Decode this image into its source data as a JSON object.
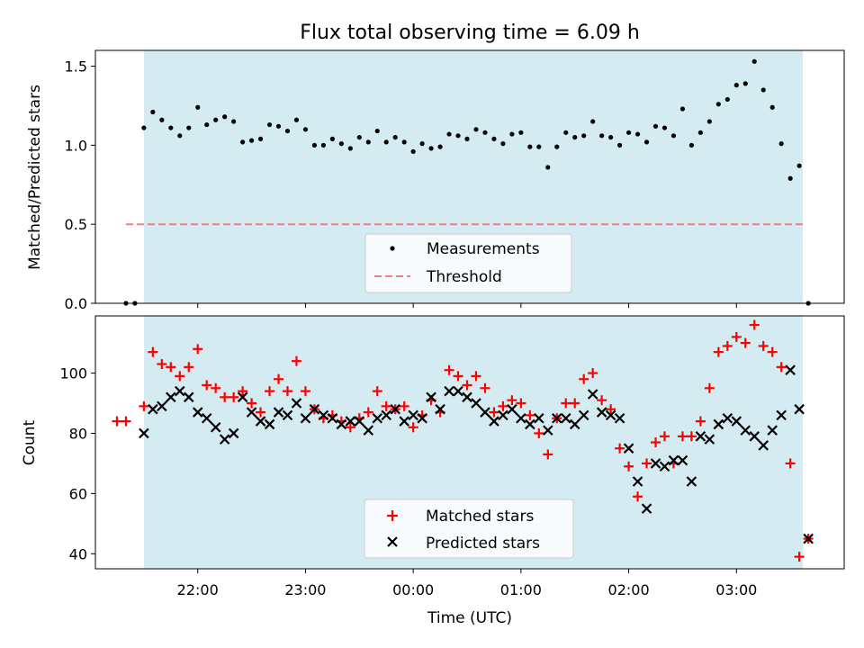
{
  "title": "Flux total observing time = 6.09 h",
  "colors": {
    "shade": "#add8e6",
    "measurement": "#000000",
    "threshold": "#f08080",
    "matched": "#ff0000",
    "predicted": "#000000"
  },
  "chart_data": [
    {
      "type": "scatter",
      "panel": "top",
      "ylabel": "Matched/Predicted stars",
      "xlabel": "",
      "ylim": [
        0,
        1.6
      ],
      "yticks": [
        0.0,
        0.5,
        1.0,
        1.5
      ],
      "ytick_labels": [
        "0.0",
        "0.5",
        "1.0",
        "1.5"
      ],
      "shaded_interval": [
        "21:30",
        "03:37"
      ],
      "threshold": 0.5,
      "legend": {
        "position": "bottom-center",
        "entries": [
          "Measurements",
          "Threshold"
        ]
      },
      "series": [
        {
          "name": "Measurements",
          "marker": "dot",
          "x": [
            "21:20",
            "21:25",
            "21:30",
            "21:35",
            "21:40",
            "21:45",
            "21:50",
            "21:55",
            "22:00",
            "22:05",
            "22:10",
            "22:15",
            "22:20",
            "22:25",
            "22:30",
            "22:35",
            "22:40",
            "22:45",
            "22:50",
            "22:55",
            "23:00",
            "23:05",
            "23:10",
            "23:15",
            "23:20",
            "23:25",
            "23:30",
            "23:35",
            "23:40",
            "23:45",
            "23:50",
            "23:55",
            "00:00",
            "00:05",
            "00:10",
            "00:15",
            "00:20",
            "00:25",
            "00:30",
            "00:35",
            "00:40",
            "00:45",
            "00:50",
            "00:55",
            "01:00",
            "01:05",
            "01:10",
            "01:15",
            "01:20",
            "01:25",
            "01:30",
            "01:35",
            "01:40",
            "01:45",
            "01:50",
            "01:55",
            "02:00",
            "02:05",
            "02:10",
            "02:15",
            "02:20",
            "02:25",
            "02:30",
            "02:35",
            "02:40",
            "02:45",
            "02:50",
            "02:55",
            "03:00",
            "03:05",
            "03:10",
            "03:15",
            "03:20",
            "03:25",
            "03:30",
            "03:35",
            "03:40"
          ],
          "y": [
            0.0,
            0.0,
            1.11,
            1.21,
            1.16,
            1.11,
            1.06,
            1.11,
            1.24,
            1.13,
            1.16,
            1.18,
            1.15,
            1.02,
            1.03,
            1.04,
            1.13,
            1.12,
            1.09,
            1.16,
            1.1,
            1.0,
            1.0,
            1.04,
            1.01,
            0.98,
            1.05,
            1.02,
            1.09,
            1.02,
            1.05,
            1.02,
            0.96,
            1.01,
            0.98,
            0.99,
            1.07,
            1.06,
            1.04,
            1.1,
            1.08,
            1.04,
            1.01,
            1.07,
            1.08,
            0.99,
            0.99,
            0.86,
            0.99,
            1.08,
            1.05,
            1.06,
            1.15,
            1.06,
            1.05,
            1.0,
            1.08,
            1.07,
            1.02,
            1.12,
            1.11,
            1.06,
            1.23,
            1.0,
            1.08,
            1.15,
            1.26,
            1.29,
            1.38,
            1.39,
            1.53,
            1.35,
            1.24,
            1.01,
            0.79,
            0.87,
            0.0
          ]
        },
        {
          "name": "Threshold",
          "style": "dashed",
          "x": [
            "21:20",
            "03:37"
          ],
          "y": [
            0.5,
            0.5
          ]
        }
      ]
    },
    {
      "type": "scatter",
      "panel": "bottom",
      "ylabel": "Count",
      "xlabel": "Time (UTC)",
      "ylim": [
        35,
        119
      ],
      "yticks": [
        40,
        60,
        80,
        100
      ],
      "ytick_labels": [
        "40",
        "60",
        "80",
        "100"
      ],
      "xlim": [
        "21:03",
        "04:00"
      ],
      "xticks": [
        "22:00",
        "23:00",
        "00:00",
        "01:00",
        "02:00",
        "03:00"
      ],
      "shaded_interval": [
        "21:30",
        "03:37"
      ],
      "legend": {
        "position": "bottom-center",
        "entries": [
          "Matched stars",
          "Predicted stars"
        ]
      },
      "series": [
        {
          "name": "Matched stars",
          "marker": "plus",
          "x": [
            "21:15",
            "21:20",
            "21:30",
            "21:35",
            "21:40",
            "21:45",
            "21:50",
            "21:55",
            "22:00",
            "22:05",
            "22:10",
            "22:15",
            "22:20",
            "22:25",
            "22:30",
            "22:35",
            "22:40",
            "22:45",
            "22:50",
            "22:55",
            "23:00",
            "23:05",
            "23:10",
            "23:15",
            "23:20",
            "23:25",
            "23:30",
            "23:35",
            "23:40",
            "23:45",
            "23:50",
            "23:55",
            "00:00",
            "00:05",
            "00:10",
            "00:15",
            "00:20",
            "00:25",
            "00:30",
            "00:35",
            "00:40",
            "00:45",
            "00:50",
            "00:55",
            "01:00",
            "01:05",
            "01:10",
            "01:15",
            "01:20",
            "01:25",
            "01:30",
            "01:35",
            "01:40",
            "01:45",
            "01:50",
            "01:55",
            "02:00",
            "02:05",
            "02:10",
            "02:15",
            "02:20",
            "02:25",
            "02:30",
            "02:35",
            "02:40",
            "02:45",
            "02:50",
            "02:55",
            "03:00",
            "03:05",
            "03:10",
            "03:15",
            "03:20",
            "03:25",
            "03:30",
            "03:35",
            "03:40"
          ],
          "y": [
            84,
            84,
            89,
            107,
            103,
            102,
            99,
            102,
            108,
            96,
            95,
            92,
            92,
            94,
            90,
            87,
            94,
            98,
            94,
            104,
            94,
            88,
            85,
            86,
            84,
            82,
            85,
            87,
            94,
            89,
            88,
            89,
            82,
            86,
            91,
            87,
            101,
            99,
            96,
            99,
            95,
            87,
            89,
            91,
            90,
            86,
            80,
            73,
            85,
            90,
            90,
            98,
            100,
            91,
            88,
            75,
            69,
            59,
            70,
            77,
            79,
            70,
            79,
            79,
            84,
            95,
            107,
            109,
            112,
            110,
            116,
            109,
            107,
            102,
            70,
            39,
            45
          ]
        },
        {
          "name": "Predicted stars",
          "marker": "x",
          "x": [
            "21:30",
            "21:35",
            "21:40",
            "21:45",
            "21:50",
            "21:55",
            "22:00",
            "22:05",
            "22:10",
            "22:15",
            "22:20",
            "22:25",
            "22:30",
            "22:35",
            "22:40",
            "22:45",
            "22:50",
            "22:55",
            "23:00",
            "23:05",
            "23:10",
            "23:15",
            "23:20",
            "23:25",
            "23:30",
            "23:35",
            "23:40",
            "23:45",
            "23:50",
            "23:55",
            "00:00",
            "00:05",
            "00:10",
            "00:15",
            "00:20",
            "00:25",
            "00:30",
            "00:35",
            "00:40",
            "00:45",
            "00:50",
            "00:55",
            "01:00",
            "01:05",
            "01:10",
            "01:15",
            "01:20",
            "01:25",
            "01:30",
            "01:35",
            "01:40",
            "01:45",
            "01:50",
            "01:55",
            "02:00",
            "02:05",
            "02:10",
            "02:15",
            "02:20",
            "02:25",
            "02:30",
            "02:35",
            "02:40",
            "02:45",
            "02:50",
            "02:55",
            "03:00",
            "03:05",
            "03:10",
            "03:15",
            "03:20",
            "03:25",
            "03:30",
            "03:35",
            "03:40"
          ],
          "y": [
            80,
            88,
            89,
            92,
            94,
            92,
            87,
            85,
            82,
            78,
            80,
            92,
            87,
            84,
            83,
            87,
            86,
            90,
            85,
            88,
            86,
            85,
            83,
            84,
            84,
            81,
            85,
            86,
            88,
            84,
            86,
            85,
            92,
            88,
            94,
            94,
            92,
            90,
            87,
            84,
            86,
            88,
            85,
            83,
            85,
            81,
            85,
            85,
            83,
            86,
            93,
            87,
            86,
            85,
            75,
            64,
            55,
            70,
            69,
            71,
            71,
            64,
            79,
            78,
            83,
            85,
            84,
            81,
            79,
            76,
            81,
            86,
            101,
            88,
            45
          ]
        }
      ]
    }
  ]
}
